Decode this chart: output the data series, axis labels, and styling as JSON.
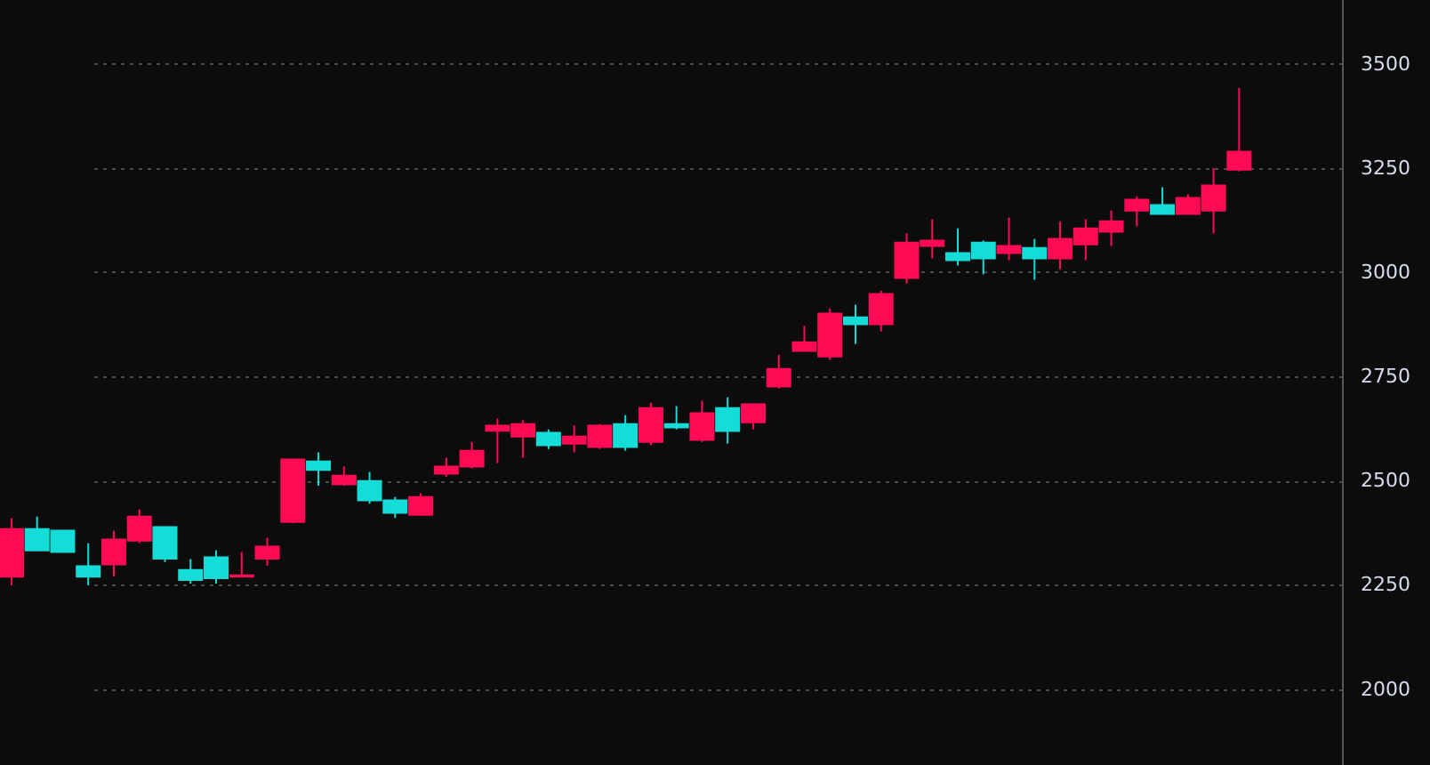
{
  "chart_data": {
    "type": "candlestick",
    "categories": [
      null,
      null,
      null,
      null,
      null,
      null,
      null,
      null,
      null,
      null,
      null,
      null,
      null,
      null,
      null,
      null,
      null,
      null,
      null,
      null,
      null,
      null,
      null,
      null,
      null,
      null,
      null,
      null,
      null,
      null,
      null,
      null,
      null,
      null,
      null,
      null,
      null,
      null,
      null,
      null,
      null,
      null,
      null,
      null,
      null,
      null,
      null,
      null,
      null
    ],
    "ohlc": [
      [
        2272,
        2412,
        2251,
        2386
      ],
      [
        2386,
        2416,
        2335,
        2335
      ],
      [
        2382,
        2382,
        2331,
        2331
      ],
      [
        2297,
        2352,
        2251,
        2272
      ],
      [
        2301,
        2382,
        2272,
        2361
      ],
      [
        2358,
        2433,
        2352,
        2416
      ],
      [
        2391,
        2391,
        2307,
        2315
      ],
      [
        2288,
        2314,
        2255,
        2264
      ],
      [
        2318,
        2335,
        2255,
        2268
      ],
      [
        2272,
        2331,
        2272,
        2275
      ],
      [
        2315,
        2365,
        2298,
        2344
      ],
      [
        2403,
        2553,
        2400,
        2553
      ],
      [
        2548,
        2570,
        2490,
        2528
      ],
      [
        2493,
        2536,
        2490,
        2514
      ],
      [
        2501,
        2523,
        2447,
        2455
      ],
      [
        2455,
        2463,
        2413,
        2425
      ],
      [
        2420,
        2472,
        2418,
        2463
      ],
      [
        2519,
        2557,
        2511,
        2536
      ],
      [
        2536,
        2595,
        2531,
        2574
      ],
      [
        2622,
        2651,
        2544,
        2634
      ],
      [
        2608,
        2647,
        2557,
        2638
      ],
      [
        2617,
        2625,
        2578,
        2587
      ],
      [
        2591,
        2634,
        2570,
        2608
      ],
      [
        2583,
        2638,
        2578,
        2634
      ],
      [
        2638,
        2659,
        2574,
        2583
      ],
      [
        2595,
        2689,
        2587,
        2676
      ],
      [
        2638,
        2681,
        2625,
        2630
      ],
      [
        2600,
        2694,
        2595,
        2664
      ],
      [
        2676,
        2702,
        2591,
        2621
      ],
      [
        2642,
        2685,
        2625,
        2685
      ],
      [
        2728,
        2804,
        2723,
        2770
      ],
      [
        2813,
        2873,
        2813,
        2834
      ],
      [
        2800,
        2915,
        2792,
        2903
      ],
      [
        2894,
        2924,
        2830,
        2877
      ],
      [
        2877,
        2958,
        2860,
        2950
      ],
      [
        2988,
        3095,
        2975,
        3073
      ],
      [
        3065,
        3129,
        3035,
        3078
      ],
      [
        3048,
        3107,
        3018,
        3031
      ],
      [
        3073,
        3078,
        2997,
        3035
      ],
      [
        3048,
        3133,
        3031,
        3065
      ],
      [
        3060,
        3082,
        2984,
        3035
      ],
      [
        3035,
        3124,
        3009,
        3082
      ],
      [
        3069,
        3129,
        3031,
        3107
      ],
      [
        3099,
        3150,
        3065,
        3124
      ],
      [
        3150,
        3184,
        3112,
        3176
      ],
      [
        3163,
        3206,
        3142,
        3142
      ],
      [
        3142,
        3189,
        3142,
        3180
      ],
      [
        3150,
        3252,
        3095,
        3210
      ],
      [
        3248,
        3444,
        3244,
        3291
      ]
    ],
    "colors": [
      "#ff0a54",
      "#14dcd6",
      "#14dcd6",
      "#14dcd6",
      "#ff0a54",
      "#ff0a54",
      "#14dcd6",
      "#14dcd6",
      "#14dcd6",
      "#ff0a54",
      "#ff0a54",
      "#ff0a54",
      "#14dcd6",
      "#ff0a54",
      "#14dcd6",
      "#14dcd6",
      "#ff0a54",
      "#ff0a54",
      "#ff0a54",
      "#ff0a54",
      "#ff0a54",
      "#14dcd6",
      "#ff0a54",
      "#ff0a54",
      "#14dcd6",
      "#ff0a54",
      "#14dcd6",
      "#ff0a54",
      "#14dcd6",
      "#ff0a54",
      "#ff0a54",
      "#ff0a54",
      "#ff0a54",
      "#14dcd6",
      "#ff0a54",
      "#ff0a54",
      "#ff0a54",
      "#14dcd6",
      "#14dcd6",
      "#ff0a54",
      "#14dcd6",
      "#ff0a54",
      "#ff0a54",
      "#ff0a54",
      "#ff0a54",
      "#14dcd6",
      "#ff0a54",
      "#ff0a54",
      "#ff0a54"
    ],
    "ylim": [
      1820,
      3655
    ],
    "yticks": [
      2000,
      2250,
      2500,
      2750,
      3000,
      3250,
      3500
    ],
    "grid": "y",
    "tick_labels": "y"
  }
}
